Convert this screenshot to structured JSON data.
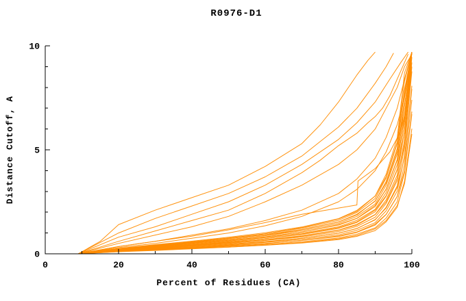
{
  "window": {
    "background": "#ffffff"
  },
  "chart_data": {
    "type": "line",
    "title": "R0976-D1",
    "xlabel": "Percent of Residues (CA)",
    "ylabel": "Distance Cutoff, A",
    "xlim": [
      0,
      100
    ],
    "ylim": [
      0,
      10
    ],
    "x_ticks": [
      0,
      20,
      40,
      60,
      80,
      100
    ],
    "x_minor_ticks": [
      10,
      30,
      50,
      70,
      90
    ],
    "y_ticks": [
      0,
      5,
      10
    ],
    "y_minor_ticks": [
      1,
      2,
      3,
      4,
      6,
      7,
      8,
      9
    ],
    "grid": false,
    "legend": false,
    "line_color": "#ff8c00",
    "axis_color": "#000000",
    "x": [
      9,
      20,
      30,
      40,
      50,
      60,
      70,
      80,
      85,
      90,
      93,
      96,
      98,
      100
    ],
    "series": [
      {
        "y": [
          0,
          0.11,
          0.18,
          0.25,
          0.32,
          0.41,
          0.52,
          0.68,
          0.84,
          1.12,
          1.54,
          2.24,
          3.5,
          6.02
        ]
      },
      {
        "y": [
          0,
          0.12,
          0.2,
          0.27,
          0.36,
          0.45,
          0.58,
          0.76,
          0.94,
          1.25,
          1.72,
          2.5,
          3.9,
          6.71
        ]
      },
      {
        "y": [
          0,
          0.13,
          0.22,
          0.3,
          0.4,
          0.5,
          0.64,
          0.83,
          1.03,
          1.38,
          1.89,
          2.75,
          4.3,
          7.4
        ]
      },
      {
        "y": [
          0,
          0.14,
          0.24,
          0.33,
          0.43,
          0.55,
          0.7,
          0.91,
          1.13,
          1.5,
          2.07,
          3.01,
          4.7,
          8.08
        ]
      },
      {
        "y": [
          0,
          0.15,
          0.26,
          0.36,
          0.47,
          0.59,
          0.75,
          0.99,
          1.22,
          1.63,
          2.24,
          3.26,
          5.1,
          8.77
        ]
      },
      {
        "y": [
          0,
          0.17,
          0.28,
          0.39,
          0.51,
          0.64,
          0.81,
          1.07,
          1.32,
          1.76,
          2.42,
          3.52,
          5.5,
          9.46
        ]
      },
      {
        "y": [
          0,
          0.18,
          0.3,
          0.41,
          0.54,
          0.68,
          0.87,
          1.14,
          1.42,
          1.89,
          2.6,
          3.78,
          5.9,
          9.7
        ]
      },
      {
        "y": [
          0,
          0.19,
          0.32,
          0.44,
          0.58,
          0.73,
          0.93,
          1.22,
          1.51,
          2.02,
          2.77,
          4.03,
          6.3,
          9.7
        ]
      },
      {
        "y": [
          0,
          0.2,
          0.34,
          0.47,
          0.62,
          0.78,
          0.99,
          1.3,
          1.61,
          2.14,
          2.95,
          4.29,
          6.7,
          9.7
        ]
      },
      {
        "y": [
          0,
          0.21,
          0.36,
          0.5,
          0.65,
          0.82,
          1.05,
          1.38,
          1.7,
          2.27,
          3.12,
          4.54,
          7.1,
          9.7
        ]
      },
      {
        "y": [
          0,
          0.23,
          0.38,
          0.53,
          0.69,
          0.87,
          1.11,
          1.46,
          1.8,
          2.4,
          3.3,
          4.8,
          7.5,
          9.7
        ]
      },
      {
        "y": [
          0,
          0.24,
          0.4,
          0.55,
          0.73,
          0.92,
          1.17,
          1.53,
          1.9,
          2.53,
          3.48,
          5.06,
          7.9,
          9.7
        ]
      },
      {
        "y": [
          0,
          0.25,
          0.42,
          0.58,
          0.76,
          0.96,
          1.23,
          1.61,
          1.99,
          2.66,
          3.65,
          5.31,
          8.3,
          9.7
        ]
      },
      {
        "y": [
          0,
          0.26,
          0.44,
          0.61,
          0.8,
          1.01,
          1.29,
          1.69,
          2.09,
          2.78,
          3.83,
          5.57,
          8.7,
          9.7
        ]
      },
      {
        "y": [
          0,
          0.1,
          0.16,
          0.24,
          0.32,
          0.42,
          0.54,
          0.72,
          0.88,
          1.2,
          1.6,
          2.32,
          3.36,
          5.76
        ]
      },
      {
        "y": [
          0,
          0.11,
          0.19,
          0.29,
          0.38,
          0.49,
          0.65,
          0.86,
          1.05,
          1.43,
          1.9,
          2.76,
          3.99,
          6.84
        ]
      },
      {
        "y": [
          0,
          0.13,
          0.22,
          0.33,
          0.44,
          0.57,
          0.75,
          0.99,
          1.21,
          1.65,
          2.2,
          3.19,
          4.62,
          7.92
        ]
      },
      {
        "y": [
          0,
          0.15,
          0.25,
          0.38,
          0.5,
          0.65,
          0.85,
          1.13,
          1.38,
          1.88,
          2.5,
          3.63,
          5.25,
          9.0
        ]
      },
      {
        "y": [
          0,
          0.17,
          0.28,
          0.42,
          0.56,
          0.73,
          0.95,
          1.26,
          1.54,
          2.1,
          2.8,
          4.06,
          5.88,
          9.7
        ]
      },
      {
        "y": [
          0,
          0.19,
          0.31,
          0.47,
          0.62,
          0.81,
          1.05,
          1.4,
          1.71,
          2.33,
          3.1,
          4.5,
          6.51,
          9.7
        ]
      },
      {
        "y": [
          0,
          0.2,
          0.34,
          0.51,
          0.68,
          0.88,
          1.16,
          1.53,
          1.87,
          2.55,
          3.4,
          4.93,
          7.14,
          9.7
        ]
      },
      {
        "y": [
          0,
          0.22,
          0.37,
          0.56,
          0.74,
          0.96,
          1.26,
          1.67,
          2.04,
          2.78,
          3.7,
          5.37,
          7.77,
          9.7
        ]
      },
      {
        "y": [
          0,
          0.3,
          0.5,
          0.75,
          1.0,
          1.35,
          1.8,
          2.5,
          3.1,
          4.0,
          4.9,
          6.2,
          7.6,
          9.7
        ]
      },
      {
        "y": [
          0,
          0.35,
          0.6,
          0.9,
          1.2,
          1.6,
          2.1,
          2.9,
          3.6,
          4.6,
          5.6,
          7.0,
          8.4,
          9.7
        ]
      },
      {
        "y": [
          0,
          0.5,
          0.9,
          1.3,
          1.8,
          2.5,
          3.3,
          4.3,
          5.0,
          6.0,
          7.0,
          8.0,
          9.0,
          9.6
        ]
      },
      {
        "x": [
          9,
          20,
          30,
          40,
          50,
          60,
          70,
          80,
          85,
          85.3,
          90,
          94,
          97,
          99,
          100
        ],
        "y": [
          0,
          0.35,
          0.6,
          0.85,
          1.15,
          1.5,
          1.9,
          2.2,
          2.35,
          3.5,
          4.1,
          4.9,
          5.9,
          7.4,
          9.2
        ]
      },
      {
        "x": [
          9,
          20,
          30,
          40,
          50,
          60,
          70,
          75,
          80,
          85,
          88,
          90,
          92,
          94,
          96,
          98,
          99
        ],
        "y": [
          0,
          0.6,
          1.1,
          1.6,
          2.1,
          2.9,
          3.9,
          4.5,
          5.2,
          5.8,
          6.3,
          6.6,
          7.0,
          7.6,
          8.4,
          9.2,
          9.6
        ]
      },
      {
        "x": [
          9,
          20,
          30,
          40,
          50,
          60,
          70,
          80,
          85,
          90,
          94,
          97,
          99
        ],
        "y": [
          0,
          0.8,
          1.3,
          1.9,
          2.5,
          3.3,
          4.3,
          5.5,
          6.3,
          7.3,
          8.4,
          9.2,
          9.7
        ]
      },
      {
        "x": [
          9,
          20,
          30,
          40,
          50,
          60,
          70,
          80,
          85,
          90,
          93,
          95
        ],
        "y": [
          0,
          1.0,
          1.7,
          2.3,
          2.9,
          3.7,
          4.7,
          6.1,
          7.0,
          8.2,
          9.0,
          9.65
        ]
      },
      {
        "x": [
          9,
          15,
          20,
          30,
          40,
          50,
          60,
          70,
          75,
          80,
          85,
          88,
          90
        ],
        "y": [
          0,
          0.6,
          1.4,
          2.1,
          2.7,
          3.3,
          4.2,
          5.3,
          6.2,
          7.3,
          8.6,
          9.3,
          9.7
        ]
      }
    ]
  }
}
